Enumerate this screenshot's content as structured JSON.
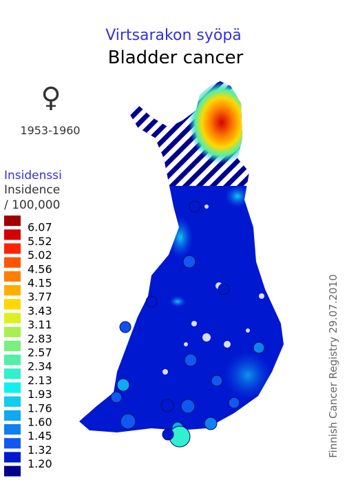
{
  "header": {
    "title_fi": "Virtsarakon syöpä",
    "title_en": "Bladder cancer"
  },
  "symbol": "♀",
  "period": "1953-1960",
  "legend": {
    "title_fi": "Insidenssi",
    "title_en": "Insidence",
    "unit": "/ 100,000",
    "colors": [
      "#a00000",
      "#d40000",
      "#ff2400",
      "#ff5500",
      "#ff8000",
      "#ffae00",
      "#ffd800",
      "#dcf020",
      "#a8f050",
      "#78f080",
      "#50f0a8",
      "#30f0d0",
      "#10f0f0",
      "#10ccf0",
      "#10a8f0",
      "#1080f0",
      "#1058f0",
      "#0018d0",
      "#00008c"
    ],
    "labels": [
      "6.07",
      "5.52",
      "5.02",
      "4.56",
      "4.15",
      "3.77",
      "3.43",
      "3.11",
      "2.83",
      "2.57",
      "2.34",
      "2.13",
      "1.93",
      "1.76",
      "1.60",
      "1.45",
      "1.32",
      "1.20"
    ]
  },
  "credit": "Finnish Cancer Registry 29.07.2010"
}
